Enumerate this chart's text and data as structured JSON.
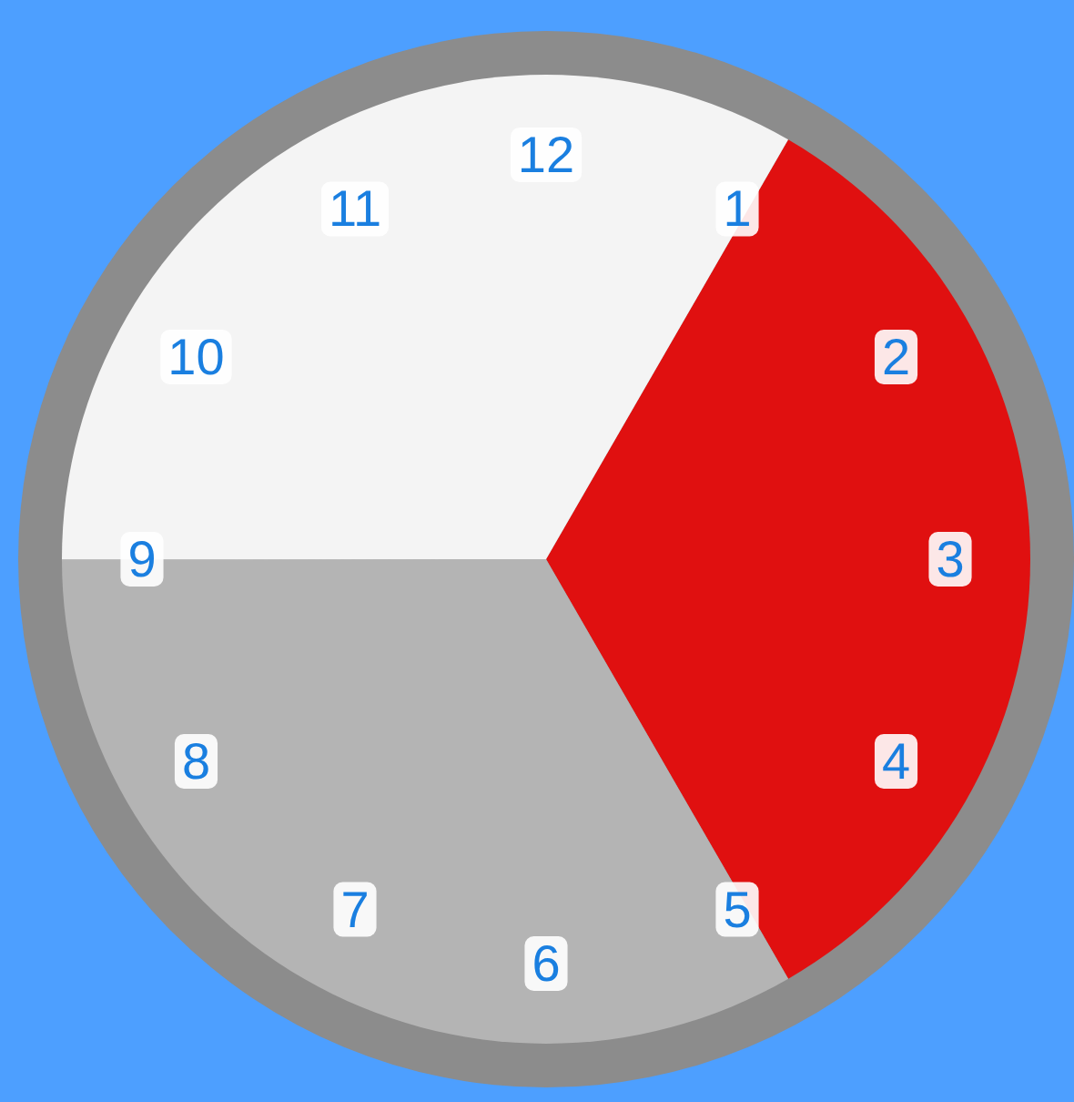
{
  "chart_data": {
    "type": "pie",
    "categories": [
      null,
      null,
      null
    ],
    "values": [
      33.33,
      33.33,
      33.34
    ],
    "colors": [
      "#e01010",
      "#b4b4b4",
      "#f4f4f4"
    ],
    "annotations": [
      "12",
      "1",
      "2",
      "3",
      "4",
      "5",
      "6",
      "7",
      "8",
      "9",
      "10",
      "11"
    ]
  }
}
